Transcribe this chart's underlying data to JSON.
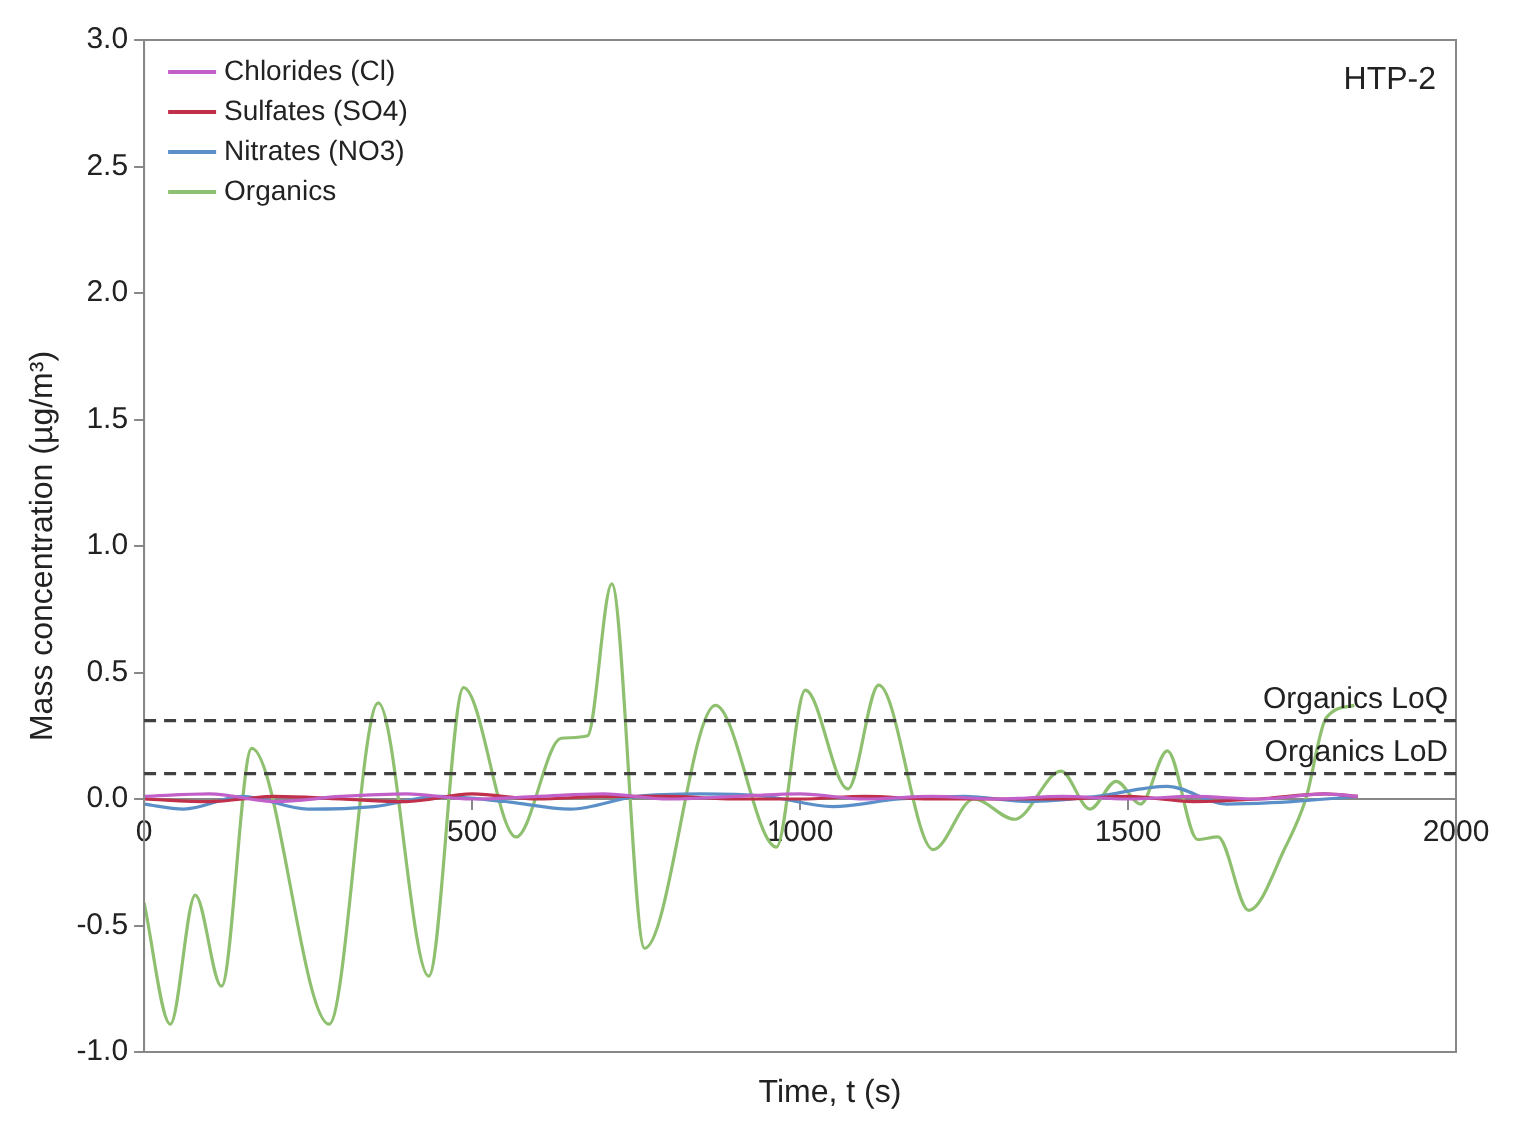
{
  "chart_data": {
    "type": "line",
    "xlabel": "Time, t (s)",
    "ylabel": "Mass concentration (µg/m³)",
    "annotations": [
      "HTP-2"
    ],
    "xlim": [
      0,
      2000
    ],
    "xticks": [
      0,
      500,
      1000,
      1500,
      2000
    ],
    "ylim": [
      -1,
      3
    ],
    "yticks": [
      {
        "value": -1,
        "label": "-1.0"
      },
      {
        "value": -0.5,
        "label": "-0.5"
      },
      {
        "value": 0,
        "label": "0.0"
      },
      {
        "value": 0.5,
        "label": "0.5"
      },
      {
        "value": 1,
        "label": "1.0"
      },
      {
        "value": 1.5,
        "label": "1.5"
      },
      {
        "value": 2,
        "label": "2.0"
      },
      {
        "value": 2.5,
        "label": "2.5"
      },
      {
        "value": 3,
        "label": "3.0"
      }
    ],
    "grid": false,
    "legend": "top left",
    "marker": "none",
    "line_style": "solid",
    "ref_lines": [
      {
        "axis": "y",
        "value": 0.31,
        "label": "Organics LoQ",
        "color": "#404040",
        "line_style": "dashed"
      },
      {
        "axis": "y",
        "value": 0.1,
        "label": "Organics LoD",
        "color": "#404040",
        "line_style": "dashed"
      }
    ],
    "series": [
      {
        "name": "Chlorides (Cl)",
        "color": "#c060c8",
        "x": [
          0,
          100,
          200,
          300,
          400,
          500,
          600,
          700,
          800,
          900,
          1000,
          1100,
          1200,
          1300,
          1400,
          1500,
          1600,
          1700,
          1800,
          1850
        ],
        "values": [
          0.01,
          0.02,
          -0.01,
          0.01,
          0.02,
          0,
          0.01,
          0.02,
          0,
          0.01,
          0.02,
          0,
          0.01,
          0,
          0.01,
          0,
          0.01,
          0,
          0.02,
          0.01
        ]
      },
      {
        "name": "Sulfates (SO4)",
        "color": "#c0304a",
        "x": [
          0,
          100,
          200,
          300,
          400,
          500,
          600,
          700,
          800,
          900,
          1000,
          1100,
          1200,
          1300,
          1400,
          1500,
          1600,
          1700,
          1800,
          1850
        ],
        "values": [
          0,
          -0.01,
          0.01,
          0,
          -0.01,
          0.02,
          0,
          0.01,
          0.01,
          0,
          0,
          0.01,
          0,
          0,
          0,
          0.01,
          -0.01,
          0,
          0.02,
          0.01
        ]
      },
      {
        "name": "Nitrates (NO3)",
        "color": "#5b8fc8",
        "x": [
          0,
          60,
          150,
          250,
          350,
          450,
          550,
          650,
          750,
          850,
          950,
          1050,
          1150,
          1250,
          1350,
          1450,
          1560,
          1650,
          1750,
          1850
        ],
        "values": [
          -0.02,
          -0.04,
          0.01,
          -0.04,
          -0.03,
          0.01,
          -0.01,
          -0.04,
          0.01,
          0.02,
          0.01,
          -0.03,
          0,
          0.01,
          -0.01,
          0.01,
          0.05,
          -0.02,
          -0.01,
          0.01
        ]
      },
      {
        "name": "Organics",
        "color": "#8fc070",
        "x": [
          0,
          40,
          78,
          118,
          164,
          282,
          357,
          434,
          487,
          567,
          636,
          676,
          713,
          763,
          871,
          964,
          1008,
          1073,
          1120,
          1203,
          1265,
          1327,
          1398,
          1442,
          1482,
          1519,
          1560,
          1606,
          1637,
          1684,
          1740,
          1771,
          1802,
          1845
        ],
        "values": [
          -0.41,
          -0.89,
          -0.38,
          -0.74,
          0.2,
          -0.89,
          0.38,
          -0.7,
          0.44,
          -0.15,
          0.24,
          0.25,
          0.85,
          -0.59,
          0.37,
          -0.19,
          0.43,
          0.04,
          0.45,
          -0.2,
          0,
          -0.08,
          0.11,
          -0.04,
          0.07,
          -0.02,
          0.19,
          -0.16,
          -0.15,
          -0.44,
          -0.19,
          0,
          0.32,
          0.37
        ]
      }
    ]
  }
}
